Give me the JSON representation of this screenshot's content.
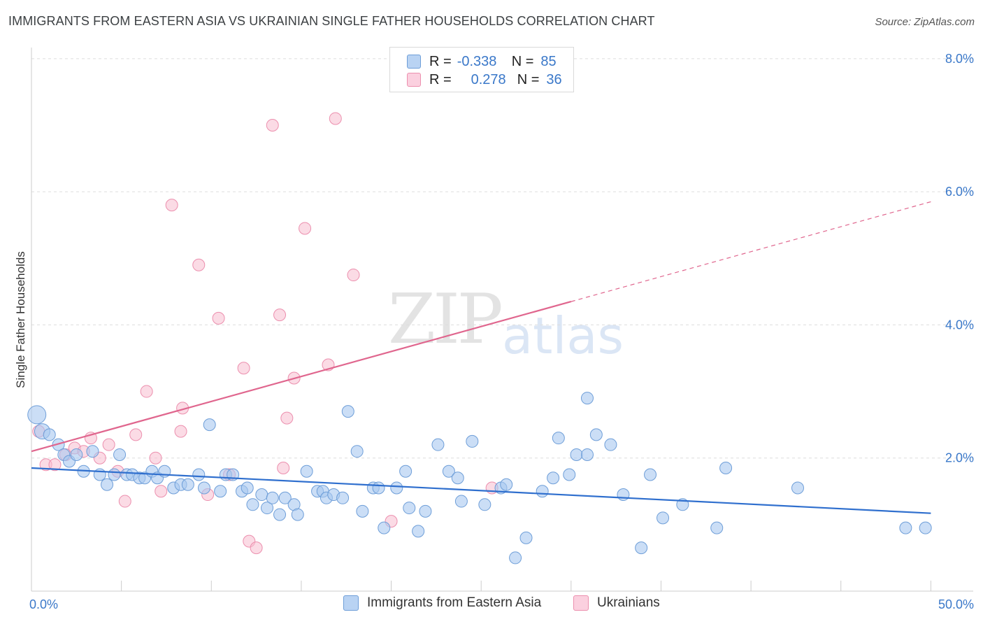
{
  "header": {
    "title": "IMMIGRANTS FROM EASTERN ASIA VS UKRAINIAN SINGLE FATHER HOUSEHOLDS CORRELATION CHART",
    "source": "Source: ZipAtlas.com"
  },
  "watermark": {
    "zip": "ZIP",
    "atlas": "atlas"
  },
  "legend": {
    "rows": [
      {
        "r_label": "R =",
        "r_value": "-0.338",
        "n_label": "N =",
        "n_value": "85"
      },
      {
        "r_label": "R =",
        "r_value": "0.278",
        "n_label": "N =",
        "n_value": "36"
      }
    ]
  },
  "colors": {
    "blue_fill": "#a8c8f0",
    "blue_stroke": "#6e9ed8",
    "blue_line": "#2f6fce",
    "pink_fill": "#f7bdd0",
    "pink_stroke": "#ec8fae",
    "pink_line": "#e0668e",
    "tick_text": "#3a78c9",
    "grid": "#dddddd"
  },
  "chart_data": {
    "type": "scatter",
    "title": "IMMIGRANTS FROM EASTERN ASIA VS UKRAINIAN SINGLE FATHER HOUSEHOLDS CORRELATION CHART",
    "xlabel": "",
    "ylabel": "Single Father Households",
    "xlim": [
      0,
      50
    ],
    "ylim": [
      0,
      8
    ],
    "x_tick_labels": [
      "0.0%",
      "50.0%"
    ],
    "y_ticks": [
      2,
      4,
      6,
      8
    ],
    "y_tick_labels": [
      "2.0%",
      "4.0%",
      "6.0%",
      "8.0%"
    ],
    "series": [
      {
        "name": "Immigrants from Eastern Asia",
        "color": "#a8c8f0",
        "trend": {
          "x0": 0,
          "y0": 1.85,
          "x1": 50,
          "y1": 1.17,
          "dashed_from": 50
        },
        "points": [
          [
            0.3,
            2.65
          ],
          [
            0.6,
            2.4
          ],
          [
            1.0,
            2.35
          ],
          [
            1.5,
            2.2
          ],
          [
            1.8,
            2.05
          ],
          [
            2.1,
            1.95
          ],
          [
            2.5,
            2.05
          ],
          [
            2.9,
            1.8
          ],
          [
            3.4,
            2.1
          ],
          [
            3.8,
            1.75
          ],
          [
            4.2,
            1.6
          ],
          [
            4.6,
            1.75
          ],
          [
            4.9,
            2.05
          ],
          [
            5.3,
            1.75
          ],
          [
            5.6,
            1.75
          ],
          [
            6.0,
            1.7
          ],
          [
            6.3,
            1.7
          ],
          [
            6.7,
            1.8
          ],
          [
            7.0,
            1.7
          ],
          [
            7.4,
            1.8
          ],
          [
            7.9,
            1.55
          ],
          [
            8.3,
            1.6
          ],
          [
            8.7,
            1.6
          ],
          [
            9.3,
            1.75
          ],
          [
            9.6,
            1.55
          ],
          [
            9.9,
            2.5
          ],
          [
            10.5,
            1.5
          ],
          [
            10.8,
            1.75
          ],
          [
            11.2,
            1.75
          ],
          [
            11.7,
            1.5
          ],
          [
            12.0,
            1.55
          ],
          [
            12.3,
            1.3
          ],
          [
            12.8,
            1.45
          ],
          [
            13.1,
            1.25
          ],
          [
            13.4,
            1.4
          ],
          [
            13.8,
            1.15
          ],
          [
            14.1,
            1.4
          ],
          [
            14.6,
            1.3
          ],
          [
            14.8,
            1.15
          ],
          [
            15.3,
            1.8
          ],
          [
            15.9,
            1.5
          ],
          [
            16.2,
            1.5
          ],
          [
            16.4,
            1.4
          ],
          [
            16.8,
            1.45
          ],
          [
            17.3,
            1.4
          ],
          [
            17.6,
            2.7
          ],
          [
            18.1,
            2.1
          ],
          [
            18.4,
            1.2
          ],
          [
            19.0,
            1.55
          ],
          [
            19.3,
            1.55
          ],
          [
            19.6,
            0.95
          ],
          [
            20.3,
            1.55
          ],
          [
            20.8,
            1.8
          ],
          [
            21.0,
            1.25
          ],
          [
            21.5,
            0.9
          ],
          [
            21.9,
            1.2
          ],
          [
            22.6,
            2.2
          ],
          [
            23.2,
            1.8
          ],
          [
            23.7,
            1.7
          ],
          [
            23.9,
            1.35
          ],
          [
            24.5,
            2.25
          ],
          [
            25.2,
            1.3
          ],
          [
            26.1,
            1.55
          ],
          [
            26.4,
            1.6
          ],
          [
            26.9,
            0.5
          ],
          [
            27.5,
            0.8
          ],
          [
            28.4,
            1.5
          ],
          [
            29.0,
            1.7
          ],
          [
            29.3,
            2.3
          ],
          [
            29.9,
            1.75
          ],
          [
            30.3,
            2.05
          ],
          [
            30.9,
            2.9
          ],
          [
            30.9,
            2.05
          ],
          [
            31.4,
            2.35
          ],
          [
            32.2,
            2.2
          ],
          [
            32.9,
            1.45
          ],
          [
            33.9,
            0.65
          ],
          [
            34.4,
            1.75
          ],
          [
            35.1,
            1.1
          ],
          [
            36.2,
            1.3
          ],
          [
            38.1,
            0.95
          ],
          [
            38.6,
            1.85
          ],
          [
            42.6,
            1.55
          ],
          [
            48.6,
            0.95
          ],
          [
            49.7,
            0.95
          ]
        ]
      },
      {
        "name": "Ukrainians",
        "color": "#f7bdd0",
        "trend": {
          "x0": 0,
          "y0": 2.1,
          "x1": 30.0,
          "y1": 4.35,
          "dashed_from": 30.0,
          "x2": 50,
          "y2": 5.85
        },
        "points": [
          [
            0.4,
            2.4
          ],
          [
            0.8,
            1.9
          ],
          [
            1.3,
            1.9
          ],
          [
            1.9,
            2.05
          ],
          [
            2.4,
            2.15
          ],
          [
            2.9,
            2.1
          ],
          [
            3.3,
            2.3
          ],
          [
            3.8,
            2.0
          ],
          [
            4.3,
            2.2
          ],
          [
            4.8,
            1.8
          ],
          [
            5.2,
            1.35
          ],
          [
            5.8,
            2.35
          ],
          [
            6.4,
            3.0
          ],
          [
            6.9,
            2.0
          ],
          [
            7.2,
            1.5
          ],
          [
            7.8,
            5.8
          ],
          [
            8.3,
            2.4
          ],
          [
            8.4,
            2.75
          ],
          [
            9.3,
            4.9
          ],
          [
            9.8,
            1.45
          ],
          [
            10.4,
            4.1
          ],
          [
            11.0,
            1.75
          ],
          [
            11.8,
            3.35
          ],
          [
            12.1,
            0.75
          ],
          [
            12.5,
            0.65
          ],
          [
            13.4,
            7.0
          ],
          [
            14.0,
            1.85
          ],
          [
            13.8,
            4.15
          ],
          [
            14.2,
            2.6
          ],
          [
            14.6,
            3.2
          ],
          [
            15.2,
            5.45
          ],
          [
            16.5,
            3.4
          ],
          [
            16.9,
            7.1
          ],
          [
            17.9,
            4.75
          ],
          [
            20.0,
            1.05
          ],
          [
            25.6,
            1.55
          ]
        ]
      }
    ]
  },
  "bottom_legend": {
    "items": [
      {
        "label": "Immigrants from Eastern Asia"
      },
      {
        "label": "Ukrainians"
      }
    ]
  }
}
